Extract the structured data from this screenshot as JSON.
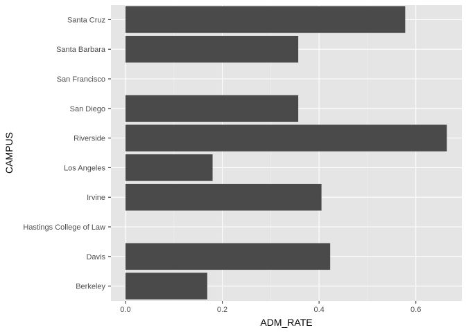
{
  "chart_data": {
    "type": "bar",
    "orientation": "horizontal",
    "categories": [
      "Berkeley",
      "Davis",
      "Hastings College of Law",
      "Irvine",
      "Los Angeles",
      "Riverside",
      "San Diego",
      "San Francisco",
      "Santa Barbara",
      "Santa Cruz"
    ],
    "values": [
      0.169,
      0.423,
      null,
      0.405,
      0.18,
      0.664,
      0.357,
      null,
      0.357,
      0.578
    ],
    "xlabel": "ADM_RATE",
    "ylabel": "CAMPUS",
    "xlim": [
      -0.03,
      0.695
    ],
    "x_ticks": [
      "0.0",
      "0.2",
      "0.4",
      "0.6"
    ],
    "x_tick_values": [
      0,
      0.2,
      0.4,
      0.6
    ],
    "grid": true,
    "colors": {
      "panel": "#e5e5e5",
      "bar": "#4a4a4a",
      "grid_major": "#ffffff",
      "grid_minor": "#f0f0f0"
    }
  }
}
